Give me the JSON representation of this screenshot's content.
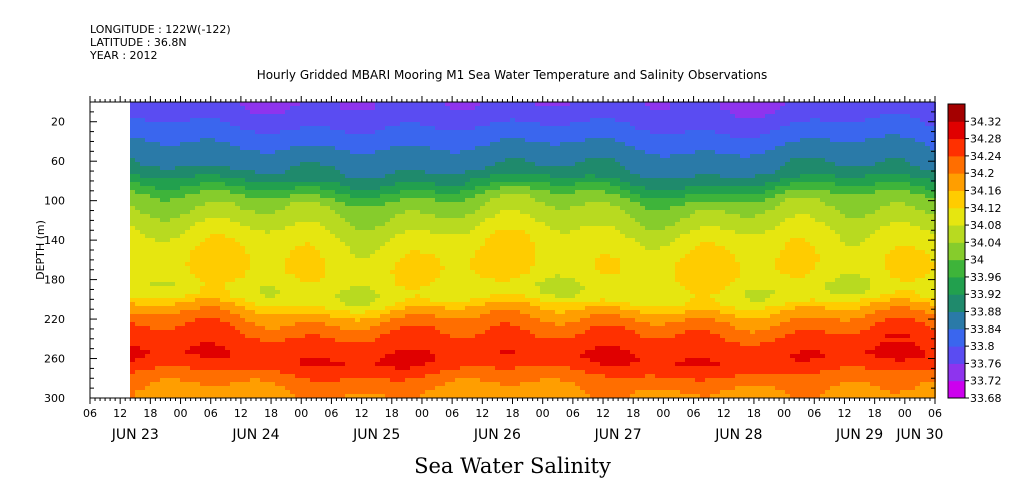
{
  "header": {
    "longitude": "LONGITUDE : 122W(-122)",
    "latitude": "LATITUDE : 36.8N",
    "year": "YEAR : 2012",
    "title": "Hourly Gridded MBARI Mooring M1 Sea Water Temperature and Salinity Observations"
  },
  "variable_label": "Sea Water Salinity",
  "chart_data": {
    "type": "heatmap",
    "title": "Hourly Gridded MBARI Mooring M1 Sea Water Temperature and Salinity Observations",
    "xlabel": "",
    "ylabel": "DEPTH (m)",
    "x_hour_ticks": [
      "06",
      "12",
      "18",
      "00",
      "06",
      "12",
      "18",
      "00",
      "06",
      "12",
      "18",
      "00",
      "06",
      "12",
      "18",
      "00",
      "06",
      "12",
      "18",
      "00",
      "06",
      "12",
      "18",
      "00",
      "06",
      "12",
      "18",
      "00",
      "06"
    ],
    "x_hour_start": 6,
    "x_range_hours": [
      0,
      168
    ],
    "data_start_hour": 8,
    "day_labels": [
      {
        "label": "JUN 23",
        "hour": 9
      },
      {
        "label": "JUN 24",
        "hour": 33
      },
      {
        "label": "JUN 25",
        "hour": 57
      },
      {
        "label": "JUN 26",
        "hour": 81
      },
      {
        "label": "JUN 27",
        "hour": 105
      },
      {
        "label": "JUN 28",
        "hour": 129
      },
      {
        "label": "JUN 29",
        "hour": 153
      },
      {
        "label": "JUN 30",
        "hour": 165
      }
    ],
    "y_ticks": [
      20,
      60,
      100,
      140,
      180,
      220,
      260,
      300
    ],
    "ylim": [
      0,
      300
    ],
    "y_inverted": true,
    "profile_depths": [
      0,
      10,
      20,
      30,
      40,
      50,
      60,
      70,
      80,
      90,
      100,
      110,
      120,
      130,
      140,
      150,
      160,
      170,
      180,
      190,
      200,
      210,
      220,
      230,
      240,
      250,
      260,
      270,
      280,
      290,
      300
    ],
    "mean_salinity_profile": [
      33.76,
      33.77,
      33.79,
      33.81,
      33.83,
      33.85,
      33.87,
      33.88,
      33.92,
      33.97,
      34.02,
      34.04,
      34.06,
      34.08,
      34.1,
      34.11,
      34.12,
      34.12,
      34.11,
      34.09,
      34.1,
      34.16,
      34.2,
      34.23,
      34.25,
      34.27,
      34.28,
      34.26,
      34.22,
      34.2,
      34.19
    ],
    "colorbar": {
      "levels": [
        33.68,
        33.72,
        33.76,
        33.8,
        33.84,
        33.88,
        33.92,
        33.96,
        34,
        34.04,
        34.08,
        34.12,
        34.16,
        34.2,
        34.24,
        34.28,
        34.32
      ],
      "level_labels": [
        "33.68",
        "33.72",
        "33.76",
        "33.8",
        "33.84",
        "33.88",
        "33.92",
        "33.96",
        "34",
        "34.04",
        "34.08",
        "34.12",
        "34.16",
        "34.2",
        "34.24",
        "34.28",
        "34.32"
      ],
      "colors": [
        "#cc00ee",
        "#8e34ee",
        "#5a4cf2",
        "#3a66ee",
        "#2a7aa8",
        "#1f8a6c",
        "#22a04e",
        "#3eb43a",
        "#86cc2c",
        "#b8da20",
        "#e6e610",
        "#ffcc00",
        "#ff9e00",
        "#ff6e00",
        "#ff3000",
        "#e00000",
        "#a40000"
      ]
    }
  }
}
